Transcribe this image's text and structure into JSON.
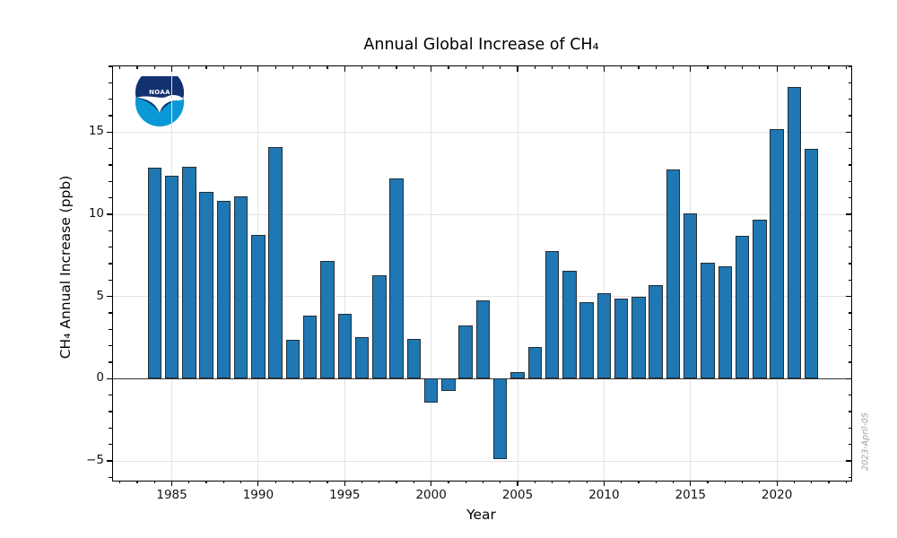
{
  "title": "Annual Global Increase of CH₄",
  "xlabel": "Year",
  "ylabel": "CH₄ Annual Increase (ppb)",
  "datestamp": "2023-April-05",
  "logo": {
    "text": "NOAA",
    "navy": "#12316e",
    "blue": "#0a99d6",
    "white": "#ffffff"
  },
  "colors": {
    "bar_fill": "#1f77b4",
    "bar_edge": "#222e36",
    "grid": "#e3e3e3",
    "zero_line": "#333333",
    "spine": "#000000",
    "tick_label": "#111111",
    "datestamp": "#a0a0a0",
    "background": "#ffffff"
  },
  "axes": {
    "xlim": [
      1981.6,
      2024.3
    ],
    "ylim": [
      -6.2,
      19.0
    ],
    "x_major_ticks": [
      1985,
      1990,
      1995,
      2000,
      2005,
      2010,
      2015,
      2020
    ],
    "x_major_labels": [
      "1985",
      "1990",
      "1995",
      "2000",
      "2005",
      "2010",
      "2015",
      "2020"
    ],
    "y_major_ticks": [
      -5,
      0,
      5,
      10,
      15
    ],
    "y_major_labels": [
      "−5",
      "0",
      "5",
      "10",
      "15"
    ],
    "x_minor_step": 1,
    "y_minor_step": 1,
    "grid": true,
    "zero_line_at": 0
  },
  "chart_data": {
    "type": "bar",
    "title": "Annual Global Increase of CH₄",
    "xlabel": "Year",
    "ylabel": "CH₄ Annual Increase (ppb)",
    "legend": null,
    "bar_width_years": 0.8,
    "xlim": [
      1981.6,
      2024.3
    ],
    "ylim": [
      -6.2,
      19.0
    ],
    "categories": [
      1984,
      1985,
      1986,
      1987,
      1988,
      1989,
      1990,
      1991,
      1992,
      1993,
      1994,
      1995,
      1996,
      1997,
      1998,
      1999,
      2000,
      2001,
      2002,
      2003,
      2004,
      2005,
      2006,
      2007,
      2008,
      2009,
      2010,
      2011,
      2012,
      2013,
      2014,
      2015,
      2016,
      2017,
      2018,
      2019,
      2020,
      2021,
      2022
    ],
    "values": [
      12.84,
      12.34,
      12.87,
      11.36,
      10.81,
      11.09,
      8.72,
      14.08,
      2.34,
      3.82,
      7.18,
      3.97,
      2.51,
      6.27,
      12.17,
      2.41,
      -1.47,
      -0.73,
      3.22,
      4.79,
      -4.89,
      0.38,
      1.95,
      7.79,
      6.54,
      4.68,
      5.19,
      4.88,
      4.99,
      5.69,
      12.72,
      10.03,
      7.07,
      6.85,
      8.71,
      9.68,
      15.17,
      17.75,
      13.98
    ]
  }
}
